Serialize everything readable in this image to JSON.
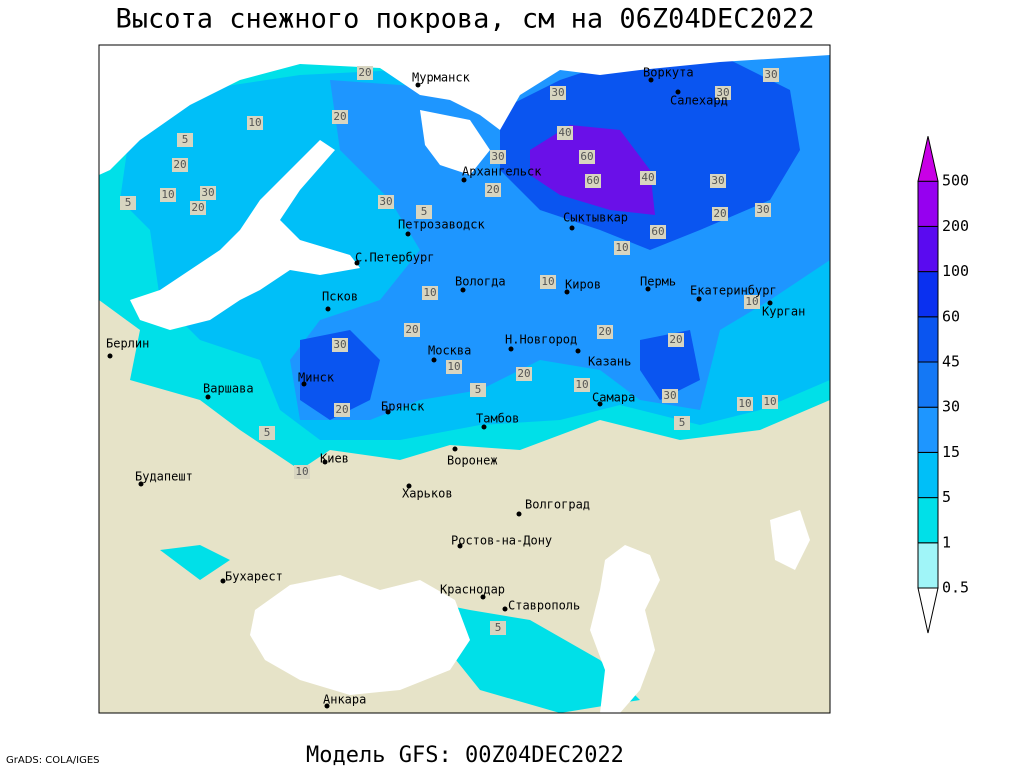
{
  "title": "Высота снежного покрова, см на 06Z04DEC2022",
  "subtitle": "Модель GFS: 00Z04DEC2022",
  "credit": "GrADS: COLA/IGES",
  "cities": [
    "Мурманск",
    "Воркута",
    "Салехард",
    "Архангельск",
    "Сыктывкар",
    "Петрозаводск",
    "С.Петербург",
    "Вологда",
    "Киров",
    "Пермь",
    "Екатеринбург",
    "Курган",
    "Псков",
    "Берлин",
    "Н.Новгород",
    "Москва",
    "Казань",
    "Минск",
    "Варшава",
    "Брянск",
    "Тамбов",
    "Самара",
    "Киев",
    "Воронеж",
    "Будапешт",
    "Харьков",
    "Волгоград",
    "Ростов-на-Дону",
    "Бухарест",
    "Краснодар",
    "Ставрополь",
    "Анкара"
  ],
  "contour_labels": [
    20,
    10,
    20,
    5,
    20,
    10,
    30,
    20,
    5,
    30,
    20,
    40,
    60,
    60,
    40,
    30,
    30,
    30,
    30,
    20,
    30,
    30,
    5,
    60,
    10,
    10,
    10,
    10,
    20,
    30,
    10,
    5,
    20,
    20,
    20,
    10,
    30,
    10,
    10,
    5,
    20,
    5,
    10,
    5
  ],
  "legend": {
    "levels": [
      0.5,
      1,
      5,
      15,
      30,
      45,
      60,
      100,
      200,
      500
    ],
    "colors": [
      "#ffffff",
      "#a0f5f8",
      "#00e0e8",
      "#00bff8",
      "#1e96ff",
      "#1478f5",
      "#0a55f0",
      "#0a30f0",
      "#5a0af0",
      "#9600f0",
      "#c800e6"
    ]
  }
}
